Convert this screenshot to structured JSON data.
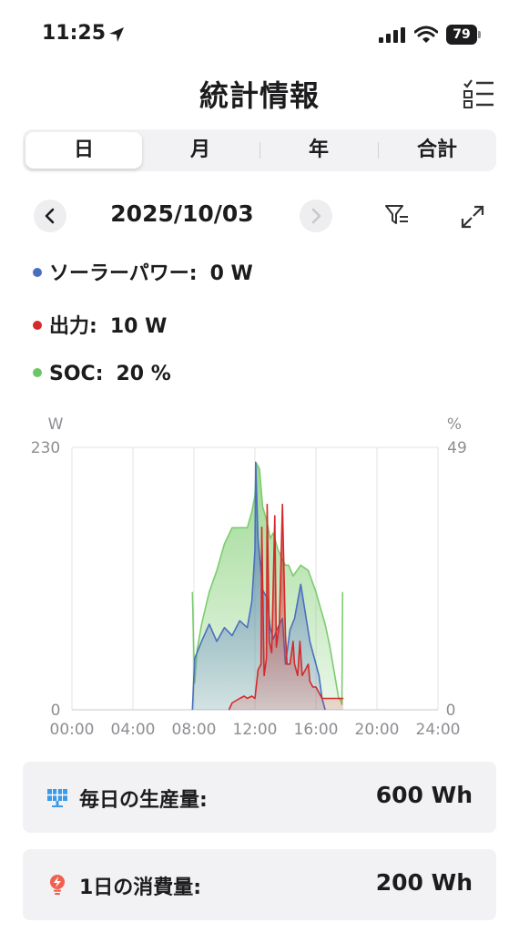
{
  "status_bar": {
    "time": "11:25",
    "battery": "79"
  },
  "header": {
    "title": "統計情報"
  },
  "tabs": [
    {
      "label": "日",
      "active": true
    },
    {
      "label": "月",
      "active": false
    },
    {
      "label": "年",
      "active": false
    },
    {
      "label": "合計",
      "active": false
    }
  ],
  "date_nav": {
    "date": "2025/10/03"
  },
  "legend": [
    {
      "label": "ソーラーパワー:",
      "value": "0 W",
      "color": "#4a6fbf"
    },
    {
      "label": "出力:",
      "value": "10 W",
      "color": "#d42a2a"
    },
    {
      "label": "SOC:",
      "value": "20 %",
      "color": "#6cc56a"
    }
  ],
  "chart_data": {
    "type": "area",
    "left_unit": "W",
    "right_unit": "%",
    "ylim_left": [
      0,
      230
    ],
    "ylim_right": [
      0,
      49
    ],
    "left_ticks": [
      "230",
      "0"
    ],
    "right_ticks": [
      "49",
      "0"
    ],
    "x_ticks": [
      "00:00",
      "04:00",
      "08:00",
      "12:00",
      "16:00",
      "20:00",
      "24:00"
    ],
    "xlim_hours": [
      0,
      24
    ],
    "grid": true,
    "series": [
      {
        "axis": "right",
        "color": "#7ccc6e",
        "x": [
          7.9,
          8.0,
          8.05,
          8.2,
          8.5,
          9.0,
          9.5,
          10.0,
          10.5,
          11.0,
          11.5,
          11.8,
          12.0,
          12.1,
          12.3,
          12.5,
          12.8,
          13.0,
          13.2,
          13.5,
          13.8,
          14.0,
          14.2,
          14.5,
          15.0,
          15.5,
          16.0,
          16.3,
          16.6,
          16.9,
          17.2,
          17.5,
          17.6,
          17.7,
          17.75
        ],
        "y": [
          22,
          10,
          5,
          11,
          16,
          22,
          26,
          31,
          34,
          34,
          34,
          37,
          40,
          46,
          45,
          38,
          35,
          32,
          33,
          30,
          28,
          27,
          27,
          25,
          27,
          26,
          22,
          19,
          16,
          12,
          7,
          2,
          2,
          1,
          22
        ]
      },
      {
        "axis": "left",
        "color": "#4a6fbf",
        "x": [
          7.9,
          8.05,
          8.5,
          9.0,
          9.5,
          10.0,
          10.5,
          11.0,
          11.5,
          11.8,
          12.0,
          12.05,
          12.2,
          12.5,
          12.8,
          13.0,
          13.2,
          13.5,
          13.8,
          14.0,
          14.3,
          14.6,
          15.0,
          15.3,
          15.6,
          16.0,
          16.2,
          16.4,
          16.6
        ],
        "y": [
          0,
          45,
          60,
          75,
          60,
          72,
          65,
          78,
          72,
          95,
          140,
          217,
          150,
          105,
          98,
          72,
          62,
          72,
          80,
          40,
          70,
          80,
          110,
          85,
          60,
          40,
          30,
          10,
          0
        ]
      },
      {
        "axis": "left",
        "color": "#d42a2a",
        "x": [
          10.3,
          10.5,
          11.0,
          11.3,
          11.5,
          11.8,
          12.0,
          12.2,
          12.4,
          12.45,
          12.6,
          12.75,
          12.8,
          12.95,
          13.1,
          13.3,
          13.4,
          13.6,
          13.8,
          14.0,
          14.1,
          14.3,
          14.5,
          14.6,
          14.8,
          14.95,
          15.1,
          15.3,
          15.5,
          15.6,
          15.8,
          16.0,
          16.4,
          17.0,
          17.8
        ],
        "y": [
          0,
          6,
          10,
          12,
          10,
          12,
          10,
          35,
          40,
          160,
          30,
          45,
          180,
          60,
          50,
          170,
          55,
          75,
          180,
          65,
          40,
          40,
          60,
          40,
          30,
          60,
          30,
          35,
          40,
          25,
          20,
          20,
          10,
          10,
          10
        ]
      }
    ]
  },
  "cards": [
    {
      "label": "毎日の生産量:",
      "value": "600 Wh"
    },
    {
      "label": "1日の消費量:",
      "value": "200 Wh"
    }
  ]
}
